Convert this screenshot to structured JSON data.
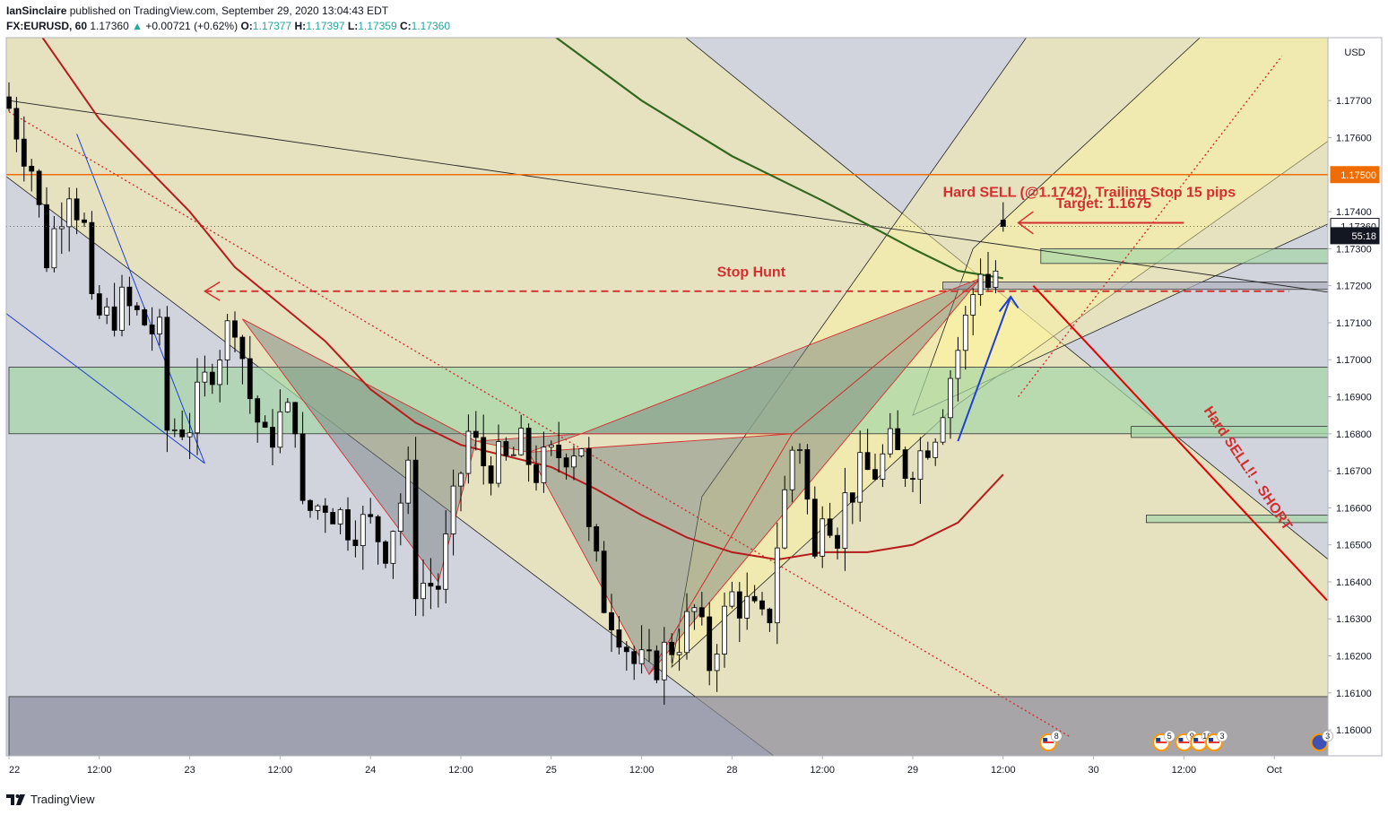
{
  "header": {
    "author": "IanSinclaire",
    "published_text": "published on TradingView.com, September 29, 2020 13:04:43 EDT",
    "symbol": "FX:EURUSD, 60",
    "last": "1.17360",
    "change_icon": "triangle-up-icon",
    "change": "+0.00721 (+0.62%)",
    "o_label": "O:",
    "o_val": "1.17377",
    "h_label": "H:",
    "h_val": "1.17397",
    "l_label": "L:",
    "l_val": "1.17359",
    "c_label": "C:",
    "c_val": "1.17360"
  },
  "footer": {
    "brand": "TradingView",
    "logo_icon": "tradingview-logo-icon"
  },
  "colors": {
    "up_candle": "#ffffff",
    "down_candle": "#000000",
    "candle_border": "#000000",
    "ema_fast": "#b71c1c",
    "ema_slow": "#33691e",
    "annotation": "#d32f2f",
    "resistance_line": "#ef6c00",
    "channel_fill": "#fff59d",
    "zone_green": "#a5d6a7",
    "zone_gray": "#b0b0c0",
    "plot_bg": "#d1d4dc"
  },
  "chart_data": {
    "type": "candlestick",
    "title": "",
    "currency": "USD",
    "ylim": [
      1.1593,
      1.1787
    ],
    "y_ticks": [
      1.16,
      1.161,
      1.162,
      1.163,
      1.164,
      1.165,
      1.166,
      1.167,
      1.168,
      1.169,
      1.17,
      1.171,
      1.172,
      1.173,
      1.174,
      1.176,
      1.177
    ],
    "y_tick_labels": [
      "1.16000",
      "1.16100",
      "1.16200",
      "1.16300",
      "1.16400",
      "1.16500",
      "1.16600",
      "1.16700",
      "1.16800",
      "1.16900",
      "1.17000",
      "1.17100",
      "1.17200",
      "1.17300",
      "1.17400",
      "1.17600",
      "1.17700"
    ],
    "x_ticks": [
      {
        "label": "22",
        "bar": 0
      },
      {
        "label": "12:00",
        "bar": 12
      },
      {
        "label": "23",
        "bar": 24
      },
      {
        "label": "12:00",
        "bar": 36
      },
      {
        "label": "24",
        "bar": 48
      },
      {
        "label": "12:00",
        "bar": 60
      },
      {
        "label": "25",
        "bar": 72
      },
      {
        "label": "12:00",
        "bar": 84
      },
      {
        "label": "28",
        "bar": 96
      },
      {
        "label": "12:00",
        "bar": 108
      },
      {
        "label": "29",
        "bar": 120
      },
      {
        "label": "12:00",
        "bar": 132
      },
      {
        "label": "30",
        "bar": 144
      },
      {
        "label": "12:00",
        "bar": 156
      },
      {
        "label": "Oct",
        "bar": 168
      }
    ],
    "price_badges": [
      {
        "price": 1.175,
        "label": "1.17500",
        "bg": "#ef6c00",
        "fg": "#ffffff"
      },
      {
        "price": 1.1736,
        "label": "1.17360",
        "bg": "#ffffff",
        "fg": "#131722",
        "border": "#131722"
      },
      {
        "price": 1.17335,
        "label": "55:18",
        "bg": "#131722",
        "fg": "#ffffff"
      }
    ],
    "close_anchors": [
      [
        0,
        1.1768
      ],
      [
        3,
        1.1752
      ],
      [
        5,
        1.1728
      ],
      [
        8,
        1.1748
      ],
      [
        10,
        1.1735
      ],
      [
        11,
        1.1712
      ],
      [
        13,
        1.1711
      ],
      [
        15,
        1.1715
      ],
      [
        18,
        1.171
      ],
      [
        20,
        1.1706
      ],
      [
        21,
        1.1681
      ],
      [
        24,
        1.1683
      ],
      [
        27,
        1.1699
      ],
      [
        30,
        1.1712
      ],
      [
        32,
        1.169
      ],
      [
        34,
        1.1677
      ],
      [
        36,
        1.1684
      ],
      [
        38,
        1.1685
      ],
      [
        39,
        1.1658
      ],
      [
        42,
        1.1662
      ],
      [
        45,
        1.1656
      ],
      [
        48,
        1.1655
      ],
      [
        50,
        1.165
      ],
      [
        53,
        1.1668
      ],
      [
        54,
        1.164
      ],
      [
        57,
        1.1639
      ],
      [
        59,
        1.166
      ],
      [
        61,
        1.168
      ],
      [
        63,
        1.1672
      ],
      [
        66,
        1.1672
      ],
      [
        68,
        1.1676
      ],
      [
        70,
        1.167
      ],
      [
        74,
        1.1676
      ],
      [
        76,
        1.1678
      ],
      [
        77,
        1.1652
      ],
      [
        79,
        1.1635
      ],
      [
        81,
        1.1628
      ],
      [
        83,
        1.1618
      ],
      [
        85,
        1.1616
      ],
      [
        87,
        1.1621
      ],
      [
        89,
        1.1625
      ],
      [
        91,
        1.1632
      ],
      [
        93,
        1.1618
      ],
      [
        94,
        1.1625
      ],
      [
        96,
        1.1636
      ],
      [
        98,
        1.1633
      ],
      [
        100,
        1.1628
      ],
      [
        101,
        1.1632
      ],
      [
        102,
        1.1651
      ],
      [
        104,
        1.1676
      ],
      [
        105,
        1.1678
      ],
      [
        107,
        1.1645
      ],
      [
        108,
        1.1663
      ],
      [
        110,
        1.1654
      ],
      [
        111,
        1.1662
      ],
      [
        113,
        1.1669
      ],
      [
        115,
        1.167
      ],
      [
        117,
        1.1676
      ],
      [
        119,
        1.1671
      ],
      [
        121,
        1.1675
      ],
      [
        123,
        1.1682
      ],
      [
        125,
        1.1696
      ],
      [
        127,
        1.171
      ],
      [
        129,
        1.1726
      ],
      [
        130,
        1.172
      ],
      [
        131,
        1.1724
      ],
      [
        132,
        1.1736
      ]
    ],
    "ema_fast": [
      [
        0,
        1.18
      ],
      [
        12,
        1.1765
      ],
      [
        24,
        1.174
      ],
      [
        30,
        1.1725
      ],
      [
        36,
        1.1715
      ],
      [
        42,
        1.1705
      ],
      [
        48,
        1.1692
      ],
      [
        54,
        1.1683
      ],
      [
        60,
        1.1677
      ],
      [
        66,
        1.1674
      ],
      [
        72,
        1.1671
      ],
      [
        78,
        1.1665
      ],
      [
        84,
        1.1658
      ],
      [
        90,
        1.1652
      ],
      [
        96,
        1.1648
      ],
      [
        102,
        1.1646
      ],
      [
        108,
        1.1648
      ],
      [
        114,
        1.1648
      ],
      [
        120,
        1.165
      ],
      [
        126,
        1.1656
      ],
      [
        132,
        1.1669
      ]
    ],
    "ema_slow": [
      [
        55,
        1.18
      ],
      [
        60,
        1.1792
      ],
      [
        72,
        1.1788
      ],
      [
        84,
        1.177
      ],
      [
        96,
        1.1755
      ],
      [
        108,
        1.1743
      ],
      [
        120,
        1.173
      ],
      [
        126,
        1.1724
      ],
      [
        132,
        1.1722
      ]
    ],
    "resistance_level": 1.175,
    "zones": [
      {
        "type": "demand",
        "y_top": 1.1698,
        "y_bottom": 1.168,
        "x_start": 0,
        "x_end": 177
      },
      {
        "type": "base",
        "y_top": 1.1609,
        "y_bottom": 1.1593,
        "x_start": 0,
        "x_end": 177
      },
      {
        "type": "supply",
        "y_top": 1.173,
        "y_bottom": 1.1726,
        "x_start": 137,
        "x_end": 177
      },
      {
        "type": "gray",
        "y_top": 1.1721,
        "y_bottom": 1.1719,
        "x_start": 124,
        "x_end": 177
      },
      {
        "type": "demand",
        "y_top": 1.1682,
        "y_bottom": 1.1679,
        "x_start": 149,
        "x_end": 177
      },
      {
        "type": "demand",
        "y_top": 1.1658,
        "y_bottom": 1.1656,
        "x_start": 151,
        "x_end": 177
      }
    ],
    "annotations": [
      {
        "text": "Hard SELL (@1.1742), Trailing Stop 15 pips",
        "bar": 124,
        "price": 1.1744
      },
      {
        "text": "Target: 1.1675",
        "bar": 139,
        "price": 1.1741
      },
      {
        "text": "Stop Hunt",
        "bar": 94,
        "price": 1.17225
      },
      {
        "text": "Hard SELL!! - SHORT",
        "bar": 164,
        "price": 1.167,
        "rotation": 56
      }
    ],
    "event_badges": [
      {
        "bar": 138,
        "count": "8",
        "flag": "US"
      },
      {
        "bar": 153,
        "count": "5",
        "flag": "US"
      },
      {
        "bar": 156,
        "count": "9",
        "flag": "US"
      },
      {
        "bar": 158,
        "count": "16",
        "flag": "US"
      },
      {
        "bar": 160,
        "count": "3",
        "flag": "US"
      },
      {
        "bar": 174,
        "count": "3",
        "flag": "EU"
      }
    ]
  }
}
